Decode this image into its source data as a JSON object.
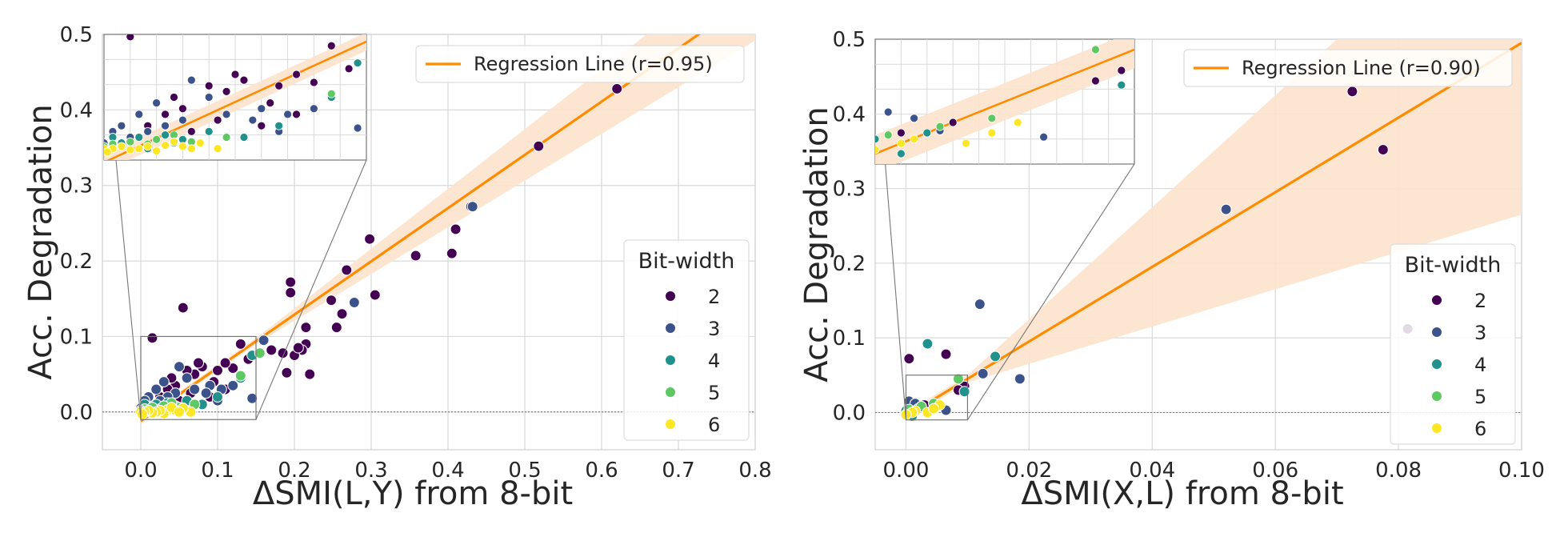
{
  "colors": {
    "bit_2": "#440154",
    "bit_3": "#3b528b",
    "bit_4": "#21918c",
    "bit_5": "#5ec962",
    "bit_6": "#fde725",
    "regression": "#ff8c00",
    "band": "#fde3cc",
    "grid": "#d9d9d9"
  },
  "chart_data": [
    {
      "type": "scatter",
      "xlabel": "ΔSMI(L,Y) from 8-bit",
      "ylabel": "Acc. Degradation",
      "xlim": [
        -0.05,
        0.8
      ],
      "ylim": [
        -0.05,
        0.5
      ],
      "xticks": [
        0.0,
        0.1,
        0.2,
        0.3,
        0.4,
        0.5,
        0.6,
        0.7,
        0.8
      ],
      "yticks": [
        0.0,
        0.1,
        0.2,
        0.3,
        0.4,
        0.5
      ],
      "xtick_labels": [
        "0.0",
        "0.1",
        "0.2",
        "0.3",
        "0.4",
        "0.5",
        "0.6",
        "0.7",
        "0.8"
      ],
      "ytick_labels": [
        "0.0",
        "0.1",
        "0.2",
        "0.3",
        "0.4",
        "0.5"
      ],
      "regression": {
        "label": "Regression Line (r=0.95)",
        "slope": 0.705,
        "intercept": -0.012,
        "band_halfwidth_at": [
          [
            0.0,
            0.004
          ],
          [
            0.15,
            0.004
          ],
          [
            0.8,
            0.06
          ]
        ]
      },
      "legend_title": "Bit-width",
      "legend_entries": [
        "2",
        "3",
        "4",
        "5",
        "6"
      ],
      "inset": {
        "xlim": [
          0.0,
          0.15
        ],
        "ylim": [
          -0.01,
          0.1
        ]
      },
      "series": [
        {
          "name": "2",
          "points": [
            [
              0.62,
              0.428
            ],
            [
              0.518,
              0.352
            ],
            [
              0.43,
              0.272
            ],
            [
              0.41,
              0.242
            ],
            [
              0.405,
              0.21
            ],
            [
              0.358,
              0.207
            ],
            [
              0.305,
              0.155
            ],
            [
              0.298,
              0.229
            ],
            [
              0.268,
              0.188
            ],
            [
              0.262,
              0.13
            ],
            [
              0.255,
              0.112
            ],
            [
              0.248,
              0.148
            ],
            [
              0.215,
              0.09
            ],
            [
              0.21,
              0.082
            ],
            [
              0.215,
              0.112
            ],
            [
              0.2,
              0.075
            ],
            [
              0.195,
              0.172
            ],
            [
              0.195,
              0.158
            ],
            [
              0.185,
              0.078
            ],
            [
              0.19,
              0.052
            ],
            [
              0.22,
              0.05
            ],
            [
              0.205,
              0.085
            ],
            [
              0.17,
              0.082
            ],
            [
              0.13,
              0.09
            ],
            [
              0.12,
              0.058
            ],
            [
              0.11,
              0.065
            ],
            [
              0.1,
              0.055
            ],
            [
              0.095,
              0.04
            ],
            [
              0.08,
              0.06
            ],
            [
              0.075,
              0.065
            ],
            [
              0.07,
              0.05
            ],
            [
              0.06,
              0.055
            ],
            [
              0.055,
              0.138
            ],
            [
              0.015,
              0.098
            ],
            [
              0.045,
              0.035
            ],
            [
              0.04,
              0.045
            ],
            [
              0.035,
              0.03
            ],
            [
              0.025,
              0.02
            ],
            [
              0.05,
              0.015
            ],
            [
              0.03,
              0.008
            ],
            [
              0.065,
              0.025
            ],
            [
              0.09,
              0.02
            ],
            [
              0.11,
              0.03
            ],
            [
              0.14,
              0.07
            ]
          ]
        },
        {
          "name": "3",
          "points": [
            [
              0.432,
              0.272
            ],
            [
              0.278,
              0.145
            ],
            [
              0.16,
              0.095
            ],
            [
              0.145,
              0.018
            ],
            [
              0.13,
              0.045
            ],
            [
              0.12,
              0.035
            ],
            [
              0.105,
              0.03
            ],
            [
              0.09,
              0.035
            ],
            [
              0.085,
              0.025
            ],
            [
              0.07,
              0.03
            ],
            [
              0.06,
              0.045
            ],
            [
              0.05,
              0.06
            ],
            [
              0.045,
              0.025
            ],
            [
              0.035,
              0.02
            ],
            [
              0.03,
              0.04
            ],
            [
              0.025,
              0.015
            ],
            [
              0.02,
              0.03
            ],
            [
              0.015,
              0.01
            ],
            [
              0.01,
              0.02
            ],
            [
              0.005,
              0.015
            ],
            [
              0.0,
              0.005
            ],
            [
              0.08,
              0.01
            ],
            [
              0.1,
              0.015
            ]
          ]
        },
        {
          "name": "4",
          "points": [
            [
              0.145,
              0.075
            ],
            [
              0.13,
              0.045
            ],
            [
              0.1,
              0.02
            ],
            [
              0.08,
              0.01
            ],
            [
              0.06,
              0.015
            ],
            [
              0.045,
              0.008
            ],
            [
              0.035,
              0.012
            ],
            [
              0.02,
              0.01
            ],
            [
              0.01,
              0.005
            ],
            [
              0.005,
              0.01
            ],
            [
              0.0,
              0.0
            ],
            [
              0.025,
              0.0
            ],
            [
              0.04,
              0.005
            ]
          ]
        },
        {
          "name": "5",
          "points": [
            [
              0.155,
              0.078
            ],
            [
              0.13,
              0.048
            ],
            [
              0.07,
              0.01
            ],
            [
              0.05,
              0.006
            ],
            [
              0.04,
              0.012
            ],
            [
              0.025,
              0.004
            ],
            [
              0.015,
              0.006
            ],
            [
              0.005,
              0.004
            ],
            [
              0.0,
              0.002
            ],
            [
              0.03,
              0.008
            ]
          ]
        },
        {
          "name": "6",
          "points": [
            [
              0.065,
              0.0
            ],
            [
              0.055,
              0.005
            ],
            [
              0.045,
              0.002
            ],
            [
              0.035,
              0.003
            ],
            [
              0.03,
              -0.002
            ],
            [
              0.025,
              0.002
            ],
            [
              0.02,
              0.0
            ],
            [
              0.015,
              -0.001
            ],
            [
              0.01,
              0.002
            ],
            [
              0.005,
              0.0
            ],
            [
              0.0,
              0.0
            ],
            [
              0.002,
              -0.003
            ],
            [
              0.04,
              0.006
            ],
            [
              0.05,
              0.0
            ]
          ]
        }
      ]
    },
    {
      "type": "scatter",
      "xlabel": "ΔSMI(X,L) from 8-bit",
      "ylabel": "Acc. Degradation",
      "xlim": [
        -0.005,
        0.1
      ],
      "ylim": [
        -0.05,
        0.5
      ],
      "xticks": [
        0.0,
        0.02,
        0.04,
        0.06,
        0.08,
        0.1
      ],
      "yticks": [
        0.0,
        0.1,
        0.2,
        0.3,
        0.4,
        0.5
      ],
      "xtick_labels": [
        "0.00",
        "0.02",
        "0.04",
        "0.06",
        "0.08",
        "0.10"
      ],
      "ytick_labels": [
        "0.0",
        "0.1",
        "0.2",
        "0.3",
        "0.4",
        "0.5"
      ],
      "regression": {
        "label": "Regression Line (r=0.90)",
        "slope": 5.0,
        "intercept": -0.005,
        "band_halfwidth_at": [
          [
            0.0,
            0.005
          ],
          [
            0.01,
            0.005
          ],
          [
            0.1,
            0.23
          ]
        ]
      },
      "legend_title": "Bit-width",
      "legend_entries": [
        "2",
        "3",
        "4",
        "5",
        "6"
      ],
      "inset": {
        "xlim": [
          0.0,
          0.01
        ],
        "ylim": [
          -0.01,
          0.05
        ]
      },
      "series": [
        {
          "name": "2",
          "points": [
            [
              0.0725,
              0.43
            ],
            [
              0.0775,
              0.352
            ],
            [
              0.0815,
              0.112
            ],
            [
              0.0065,
              0.078
            ],
            [
              0.0005,
              0.072
            ],
            [
              0.0095,
              0.035
            ],
            [
              0.0085,
              0.03
            ],
            [
              0.003,
              0.01
            ],
            [
              0.001,
              0.005
            ]
          ]
        },
        {
          "name": "3",
          "points": [
            [
              0.052,
              0.272
            ],
            [
              0.012,
              0.145
            ],
            [
              0.0185,
              0.045
            ],
            [
              0.0125,
              0.052
            ],
            [
              0.0065,
              0.003
            ],
            [
              0.0005,
              0.015
            ],
            [
              0.0015,
              0.012
            ],
            [
              0.0025,
              0.006
            ]
          ]
        },
        {
          "name": "4",
          "points": [
            [
              0.0035,
              0.092
            ],
            [
              0.0145,
              0.075
            ],
            [
              0.0095,
              0.028
            ],
            [
              0.002,
              0.005
            ],
            [
              0.001,
              -0.005
            ],
            [
              0.0,
              0.002
            ]
          ]
        },
        {
          "name": "5",
          "points": [
            [
              0.0085,
              0.045
            ],
            [
              0.0045,
              0.012
            ],
            [
              0.0025,
              0.008
            ],
            [
              0.0005,
              0.004
            ]
          ]
        },
        {
          "name": "6",
          "points": [
            [
              0.0035,
              0.0
            ],
            [
              0.0015,
              0.002
            ],
            [
              0.0055,
              0.01
            ],
            [
              0.0045,
              0.005
            ],
            [
              0.001,
              0.0
            ],
            [
              0.0,
              -0.003
            ]
          ]
        }
      ]
    }
  ]
}
